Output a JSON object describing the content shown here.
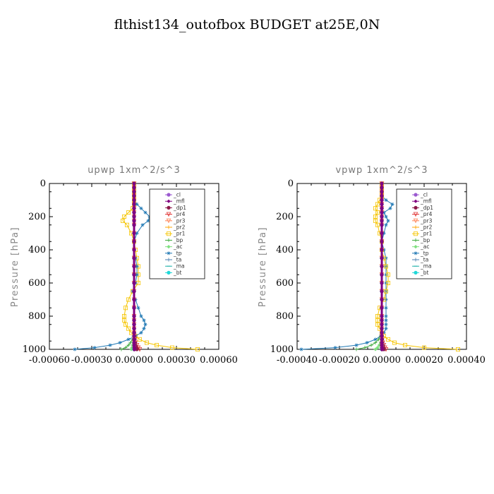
{
  "suptitle": "flthist134_outofbox  BUDGET at25E,0N",
  "chart_data": [
    {
      "type": "line",
      "title": "upwp   1xm^2/s^3",
      "ylabel": "Pressure [hPa]",
      "xlim": [
        -0.0006,
        0.0006
      ],
      "ylim": [
        1000,
        0
      ],
      "xticks": [
        -0.0006,
        -0.0003,
        0.0,
        0.0003,
        0.0006
      ],
      "xtick_labels": [
        "-0.00060",
        "-0.00030",
        "0.00000",
        "0.00030",
        "0.00060"
      ],
      "yticks": [
        0,
        200,
        400,
        600,
        800,
        1000
      ],
      "ytick_labels": [
        "0",
        "200",
        "400",
        "600",
        "800",
        "1000"
      ],
      "legend_position": "top-right",
      "legend": [
        "_cl",
        "_mfl",
        "_dp1",
        "_pr4",
        "_pr3",
        "_pr2",
        "_pr1",
        "_bp",
        "_ac",
        "_tp",
        "_ta",
        "_ma",
        "_bt"
      ],
      "y": [
        1000,
        990,
        975,
        960,
        940,
        920,
        900,
        875,
        850,
        825,
        800,
        750,
        700,
        650,
        600,
        550,
        500,
        450,
        400,
        350,
        300,
        250,
        225,
        200,
        175,
        150,
        125,
        100,
        75,
        50,
        25,
        0
      ],
      "series": [
        {
          "name": "_cl",
          "color": "#9b59d0",
          "values": [
            0,
            0,
            0,
            0,
            0,
            0,
            0,
            0,
            0,
            0,
            0,
            0,
            0,
            0,
            0,
            0,
            0,
            0,
            0,
            0,
            0,
            0,
            0,
            0,
            0,
            0,
            0,
            0,
            0,
            0,
            0,
            0
          ]
        },
        {
          "name": "_mfl",
          "color": "#800080",
          "values": [
            2e-06,
            2e-06,
            1e-06,
            1e-06,
            0,
            0,
            0,
            0,
            0,
            0,
            0,
            0,
            0,
            0,
            0,
            0,
            0,
            0,
            0,
            0,
            0,
            0,
            0,
            0,
            0,
            0,
            0,
            0,
            0,
            0,
            0,
            0
          ]
        },
        {
          "name": "_dp1",
          "color": "#8b1a4a",
          "values": [
            2e-05,
            1.5e-05,
            1e-05,
            8e-06,
            5e-06,
            3e-06,
            2e-06,
            1e-06,
            0,
            0,
            0,
            0,
            0,
            0,
            0,
            0,
            0,
            0,
            0,
            0,
            0,
            0,
            0,
            0,
            0,
            0,
            0,
            0,
            0,
            0,
            0,
            0
          ]
        },
        {
          "name": "_pr4",
          "color": "#e03030",
          "values": [
            4e-05,
            3e-05,
            2e-05,
            1e-05,
            5e-06,
            2e-06,
            0,
            0,
            0,
            0,
            0,
            0,
            0,
            0,
            0,
            0,
            0,
            0,
            0,
            0,
            0,
            0,
            0,
            0,
            0,
            0,
            0,
            0,
            0,
            0,
            0,
            0
          ]
        },
        {
          "name": "_pr3",
          "color": "#ff7f50",
          "values": [
            0,
            0,
            0,
            0,
            0,
            0,
            0,
            0,
            0,
            0,
            0,
            0,
            0,
            0,
            0,
            0,
            0,
            0,
            0,
            0,
            0,
            0,
            0,
            0,
            0,
            0,
            0,
            0,
            0,
            0,
            0,
            0
          ]
        },
        {
          "name": "_pr2",
          "color": "#ffa500",
          "values": [
            0,
            0,
            0,
            0,
            0,
            0,
            0,
            0,
            0,
            0,
            0,
            0,
            0,
            0,
            0,
            0,
            0,
            0,
            0,
            0,
            0,
            0,
            0,
            0,
            0,
            0,
            0,
            0,
            0,
            0,
            0,
            0
          ]
        },
        {
          "name": "_pr1",
          "color": "#f5c400",
          "values": [
            0.00045,
            0.00027,
            0.00016,
            9e-05,
            4e-05,
            1e-05,
            -2e-05,
            -4e-05,
            -6e-05,
            -7e-05,
            -7e-05,
            -6e-05,
            -4e-05,
            -1e-05,
            3e-05,
            3e-05,
            3e-05,
            2e-05,
            1e-05,
            0,
            -2e-05,
            -5e-05,
            -8e-05,
            -7e-05,
            -4e-05,
            -1e-05,
            0,
            0,
            0,
            0,
            0,
            0
          ]
        },
        {
          "name": "_bp",
          "color": "#3aa83a",
          "values": [
            -9e-05,
            -6e-05,
            -4e-05,
            -2.5e-05,
            -1.2e-05,
            -5e-06,
            -2e-06,
            0,
            0,
            0,
            0,
            0,
            0,
            0,
            0,
            0,
            0,
            0,
            0,
            0,
            0,
            0,
            0,
            0,
            0,
            0,
            0,
            0,
            0,
            0,
            0,
            0
          ]
        },
        {
          "name": "_ac",
          "color": "#7fe080",
          "values": [
            -2e-05,
            -1.5e-05,
            -1e-05,
            -6e-06,
            -3e-06,
            -1e-06,
            0,
            0,
            0,
            0,
            0,
            0,
            0,
            0,
            0,
            0,
            0,
            0,
            0,
            0,
            0,
            0,
            0,
            0,
            0,
            0,
            0,
            0,
            0,
            0,
            0,
            0
          ]
        },
        {
          "name": "_tp",
          "color": "#1f78b4",
          "values": [
            -0.00042,
            -0.00028,
            -0.00017,
            -0.0001,
            -4e-05,
            1e-05,
            5e-05,
            7e-05,
            8e-05,
            7e-05,
            5e-05,
            3e-05,
            1e-05,
            -1e-05,
            1e-05,
            2e-05,
            2e-05,
            1e-05,
            0,
            0,
            2e-05,
            6e-05,
            0.0001,
            0.00011,
            8e-05,
            5e-05,
            2e-05,
            0,
            0,
            0,
            0,
            0
          ]
        },
        {
          "name": "_ta",
          "color": "#4a7fb0",
          "values": [
            0,
            0,
            0,
            0,
            0,
            0,
            0,
            0,
            0,
            0,
            0,
            0,
            0,
            0,
            0,
            0,
            0,
            0,
            0,
            0,
            0,
            0,
            0,
            0,
            0,
            0,
            0,
            0,
            0,
            0,
            0,
            0
          ]
        },
        {
          "name": "_ma",
          "color": "#20b2aa",
          "values": [
            0,
            0,
            0,
            0,
            0,
            0,
            0,
            0,
            0,
            0,
            0,
            0,
            0,
            0,
            0,
            0,
            0,
            0,
            0,
            0,
            0,
            0,
            0,
            0,
            0,
            0,
            0,
            0,
            0,
            0,
            0,
            0
          ]
        },
        {
          "name": "_bt",
          "color": "#20d8d8",
          "values": [
            0,
            0,
            0,
            0,
            0,
            0,
            0,
            0,
            0,
            0,
            0,
            0,
            0,
            0,
            0,
            0,
            0,
            0,
            0,
            0,
            0,
            0,
            0,
            0,
            0,
            0,
            0,
            0,
            0,
            0,
            0,
            0
          ]
        }
      ]
    },
    {
      "type": "line",
      "title": "vpwp   1xm^2/s^3",
      "ylabel": "Pressure [hPa]",
      "xlim": [
        -0.0004,
        0.0004
      ],
      "ylim": [
        1000,
        0
      ],
      "xticks": [
        -0.0004,
        -0.0002,
        0.0,
        0.0002,
        0.0004
      ],
      "xtick_labels": [
        "-0.00040",
        "-0.00020",
        "0.00000",
        "0.00020",
        "0.00040"
      ],
      "yticks": [
        0,
        200,
        400,
        600,
        800,
        1000
      ],
      "ytick_labels": [
        "0",
        "200",
        "400",
        "600",
        "800",
        "1000"
      ],
      "legend_position": "top-right",
      "legend": [
        "_cl",
        "_mfl",
        "_dp1",
        "_pr4",
        "_pr3",
        "_pr2",
        "_pr1",
        "_bp",
        "_ac",
        "_tp",
        "_ta",
        "_ma",
        "_bt"
      ],
      "y": [
        1000,
        990,
        975,
        960,
        940,
        920,
        900,
        875,
        850,
        825,
        800,
        750,
        700,
        650,
        600,
        550,
        500,
        450,
        400,
        350,
        300,
        250,
        225,
        200,
        175,
        150,
        125,
        100,
        75,
        50,
        25,
        0
      ],
      "series": [
        {
          "name": "_cl",
          "color": "#9b59d0",
          "values": [
            0,
            0,
            0,
            0,
            0,
            0,
            0,
            0,
            0,
            0,
            0,
            0,
            0,
            0,
            0,
            0,
            0,
            0,
            0,
            0,
            0,
            0,
            0,
            0,
            0,
            0,
            0,
            0,
            0,
            0,
            0,
            0
          ]
        },
        {
          "name": "_mfl",
          "color": "#800080",
          "values": [
            1e-06,
            1e-06,
            0,
            0,
            0,
            0,
            0,
            0,
            0,
            0,
            0,
            0,
            0,
            0,
            0,
            0,
            0,
            0,
            0,
            0,
            0,
            0,
            0,
            0,
            0,
            0,
            0,
            0,
            0,
            0,
            0,
            0
          ]
        },
        {
          "name": "_dp1",
          "color": "#8b1a4a",
          "values": [
            1e-05,
            8e-06,
            5e-06,
            3e-06,
            2e-06,
            1e-06,
            0,
            0,
            0,
            0,
            0,
            0,
            0,
            0,
            0,
            0,
            0,
            0,
            0,
            0,
            0,
            0,
            0,
            0,
            0,
            0,
            0,
            0,
            0,
            0,
            0,
            0
          ]
        },
        {
          "name": "_pr4",
          "color": "#e03030",
          "values": [
            2e-05,
            1.5e-05,
            1e-05,
            5e-06,
            2e-06,
            0,
            0,
            0,
            0,
            0,
            0,
            0,
            0,
            0,
            0,
            0,
            0,
            0,
            0,
            0,
            0,
            0,
            0,
            0,
            0,
            0,
            0,
            0,
            0,
            0,
            0,
            0
          ]
        },
        {
          "name": "_pr3",
          "color": "#ff7f50",
          "values": [
            0,
            0,
            0,
            0,
            0,
            0,
            0,
            0,
            0,
            0,
            0,
            0,
            0,
            0,
            0,
            0,
            0,
            0,
            0,
            0,
            0,
            0,
            0,
            0,
            0,
            0,
            0,
            0,
            0,
            0,
            0,
            0
          ]
        },
        {
          "name": "_pr2",
          "color": "#ffa500",
          "values": [
            0,
            0,
            0,
            0,
            0,
            0,
            0,
            0,
            0,
            0,
            0,
            0,
            0,
            0,
            0,
            0,
            0,
            0,
            0,
            0,
            0,
            0,
            0,
            0,
            0,
            0,
            0,
            0,
            0,
            0,
            0,
            0
          ]
        },
        {
          "name": "_pr1",
          "color": "#f5c400",
          "values": [
            0.00036,
            0.0002,
            0.00011,
            6e-05,
            3e-05,
            1e-05,
            0,
            -1e-05,
            -2e-05,
            -2e-05,
            -2e-05,
            -1e-05,
            1e-05,
            2e-05,
            3e-05,
            3e-05,
            2e-05,
            1e-05,
            0,
            0,
            -1e-05,
            -2e-05,
            -3e-05,
            -3e-05,
            -2e-05,
            -3e-05,
            -2e-05,
            -1e-05,
            0,
            0,
            0,
            0
          ]
        },
        {
          "name": "_bp",
          "color": "#3aa83a",
          "values": [
            -0.00012,
            -8e-05,
            -5e-05,
            -3e-05,
            -1.5e-05,
            -5e-06,
            0,
            0,
            0,
            0,
            0,
            0,
            0,
            0,
            0,
            0,
            0,
            0,
            0,
            0,
            0,
            0,
            0,
            0,
            0,
            0,
            0,
            0,
            0,
            0,
            0,
            0
          ]
        },
        {
          "name": "_ac",
          "color": "#7fe080",
          "values": [
            -3e-05,
            -2e-05,
            -1.2e-05,
            -6e-06,
            -3e-06,
            -1e-06,
            0,
            0,
            0,
            0,
            0,
            0,
            0,
            0,
            0,
            0,
            0,
            0,
            0,
            0,
            0,
            0,
            0,
            0,
            0,
            0,
            0,
            0,
            0,
            0,
            0,
            0
          ]
        },
        {
          "name": "_tp",
          "color": "#1f78b4",
          "values": [
            -0.00038,
            -0.00022,
            -0.00012,
            -7e-05,
            -3e-05,
            -5e-06,
            1e-05,
            2e-05,
            2e-05,
            2e-05,
            2e-05,
            2e-05,
            2e-05,
            2e-05,
            2e-05,
            2e-05,
            2e-05,
            2e-05,
            1e-05,
            0,
            1e-05,
            2e-05,
            3e-05,
            2e-05,
            1e-05,
            4e-05,
            5e-05,
            2e-05,
            0,
            0,
            0,
            0
          ]
        },
        {
          "name": "_ta",
          "color": "#4a7fb0",
          "values": [
            0,
            0,
            0,
            0,
            0,
            0,
            0,
            0,
            0,
            0,
            0,
            0,
            0,
            0,
            0,
            0,
            0,
            0,
            0,
            0,
            0,
            0,
            0,
            0,
            0,
            0,
            0,
            0,
            0,
            0,
            0,
            0
          ]
        },
        {
          "name": "_ma",
          "color": "#20b2aa",
          "values": [
            0,
            0,
            0,
            0,
            0,
            0,
            0,
            0,
            0,
            0,
            0,
            0,
            0,
            0,
            0,
            0,
            0,
            0,
            0,
            0,
            0,
            0,
            0,
            0,
            0,
            0,
            0,
            0,
            0,
            0,
            0,
            0
          ]
        },
        {
          "name": "_bt",
          "color": "#20d8d8",
          "values": [
            0,
            0,
            0,
            0,
            0,
            0,
            0,
            0,
            0,
            0,
            0,
            0,
            0,
            0,
            0,
            0,
            0,
            0,
            0,
            0,
            0,
            0,
            0,
            0,
            0,
            0,
            0,
            0,
            0,
            0,
            0,
            0
          ]
        }
      ]
    }
  ]
}
